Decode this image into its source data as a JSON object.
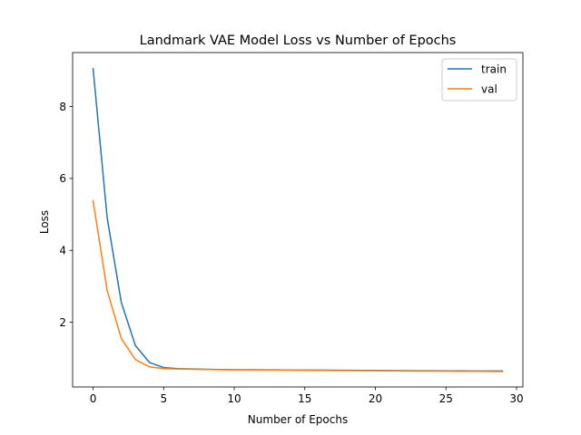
{
  "chart_data": {
    "type": "line",
    "title": "Landmark VAE Model Loss vs Number of Epochs",
    "xlabel": "Number of Epochs",
    "ylabel": "Loss",
    "xlim": [
      -1.45,
      30.45
    ],
    "ylim": [
      0.2,
      9.5
    ],
    "xticks": [
      0,
      5,
      10,
      15,
      20,
      25,
      30
    ],
    "yticks": [
      2,
      4,
      6,
      8
    ],
    "grid": false,
    "legend": "top-right",
    "x": [
      0,
      1,
      2,
      3,
      4,
      5,
      6,
      7,
      8,
      9,
      10,
      11,
      12,
      13,
      14,
      15,
      16,
      17,
      18,
      19,
      20,
      21,
      22,
      23,
      24,
      25,
      26,
      27,
      28,
      29
    ],
    "series": [
      {
        "name": "train",
        "color": "#1f77b4",
        "values": [
          9.05,
          4.9,
          2.55,
          1.35,
          0.88,
          0.74,
          0.71,
          0.7,
          0.69,
          0.685,
          0.68,
          0.68,
          0.675,
          0.675,
          0.67,
          0.67,
          0.668,
          0.665,
          0.663,
          0.66,
          0.66,
          0.658,
          0.655,
          0.652,
          0.65,
          0.648,
          0.647,
          0.645,
          0.644,
          0.643
        ]
      },
      {
        "name": "val",
        "color": "#ff7f0e",
        "values": [
          5.38,
          2.88,
          1.55,
          0.96,
          0.76,
          0.71,
          0.7,
          0.69,
          0.685,
          0.68,
          0.675,
          0.672,
          0.67,
          0.668,
          0.665,
          0.662,
          0.66,
          0.658,
          0.655,
          0.652,
          0.65,
          0.648,
          0.645,
          0.642,
          0.64,
          0.638,
          0.636,
          0.634,
          0.632,
          0.63
        ]
      }
    ]
  }
}
